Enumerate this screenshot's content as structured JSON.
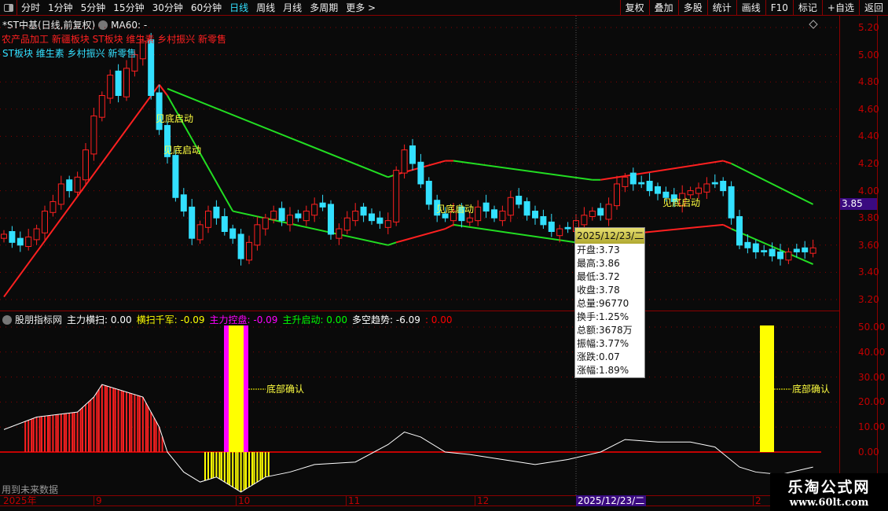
{
  "toolbar": {
    "periods": [
      "分时",
      "1分钟",
      "5分钟",
      "15分钟",
      "30分钟",
      "60分钟",
      "日线",
      "周线",
      "月线",
      "多周期",
      "更多 >"
    ],
    "active_period": "日线",
    "right_buttons": [
      "复权",
      "叠加",
      "多股",
      "统计",
      "画线",
      "F10",
      "标记",
      "+自选",
      "返回"
    ]
  },
  "header": {
    "title": "*ST中基(日线,前复权)",
    "ma_label": "MA60: -",
    "tags_red": "农产品加工 新疆板块 ST板块 维生素 乡村振兴 新零售",
    "tags_cyan": "ST板块 维生素 乡村振兴 新零售"
  },
  "price_axis": {
    "ticks": [
      "5.20",
      "5.00",
      "4.80",
      "4.60",
      "4.40",
      "4.20",
      "4.00",
      "3.80",
      "3.60",
      "3.40",
      "3.20"
    ],
    "current": "3.85"
  },
  "annotations": [
    "见底启动",
    "见底启动",
    "见底启动",
    "见底启动"
  ],
  "indicator": {
    "name": "股朋指标网",
    "items": [
      {
        "label": "主力横扫: 0.00",
        "color": "#ffffff"
      },
      {
        "label": "横扫千军: -0.09",
        "color": "#ffff00"
      },
      {
        "label": "主力控盘: -0.09",
        "color": "#ff00ff"
      },
      {
        "label": "主升启动: 0.00",
        "color": "#00ff00"
      },
      {
        "label": "多空趋势: -6.09",
        "color": "#ffffff"
      },
      {
        "label": ": 0.00",
        "color": "#ff0000"
      }
    ],
    "ticks": [
      "50.00",
      "40.00",
      "30.00",
      "20.00",
      "10.00",
      "0.00"
    ],
    "signal_label": "底部确认"
  },
  "tooltip": {
    "date": "2025/12/23/二",
    "rows": [
      "开盘:3.73",
      "最高:3.86",
      "最低:3.72",
      "收盘:3.78",
      "总量:96770",
      "换手:1.25%",
      "总额:3678万",
      "振幅:3.77%",
      "涨跌:0.07",
      "涨幅:1.89%"
    ]
  },
  "time_axis": {
    "labels": [
      "2025年",
      "9",
      "10",
      "11",
      "12",
      "2"
    ],
    "cursor_date": "2025/12/23/二"
  },
  "future_note": "用到未来数据",
  "watermark": {
    "name": "乐淘公式网",
    "url": "www.60lt.com"
  },
  "colors": {
    "up": "#ff2020",
    "down": "#33e0ff",
    "ma_up": "#ff2020",
    "ma_down": "#22dd22",
    "accent": "#8b0000"
  },
  "chart_data": {
    "type": "candlestick",
    "closes": [
      3.68,
      3.62,
      3.6,
      3.66,
      3.72,
      3.85,
      3.92,
      4.05,
      4.0,
      4.1,
      4.3,
      4.55,
      4.7,
      4.85,
      4.7,
      4.9,
      5.0,
      5.1,
      4.7,
      4.45,
      4.25,
      3.95,
      3.85,
      3.65,
      3.75,
      3.85,
      3.8,
      3.7,
      3.65,
      3.5,
      3.62,
      3.75,
      3.8,
      3.85,
      3.78,
      3.82,
      3.8,
      3.85,
      3.9,
      3.88,
      3.68,
      3.72,
      3.8,
      3.85,
      3.82,
      3.78,
      3.76,
      3.78,
      4.15,
      4.3,
      4.2,
      4.05,
      3.9,
      3.82,
      3.8,
      3.85,
      3.78,
      3.8,
      3.88,
      3.85,
      3.8,
      3.85,
      3.95,
      3.9,
      3.82,
      3.8,
      3.75,
      3.7,
      3.72,
      3.72,
      3.78,
      3.82,
      3.85,
      3.82,
      3.9,
      4.05,
      4.1,
      4.05,
      4.05,
      4.0,
      3.98,
      3.95,
      3.92,
      3.98,
      4.0,
      4.02,
      4.05,
      4.05,
      4.0,
      3.8,
      3.6,
      3.58,
      3.55,
      3.55,
      3.52,
      3.5,
      3.55,
      3.55,
      3.55,
      3.58
    ],
    "upper_band": [
      [
        20,
        4.75,
        "down"
      ],
      [
        47,
        4.1,
        "down"
      ],
      [
        48,
        4.12,
        "up"
      ],
      [
        54,
        4.22,
        "up"
      ],
      [
        55,
        4.22,
        "down"
      ],
      [
        72,
        4.08,
        "down"
      ],
      [
        73,
        4.08,
        "up"
      ],
      [
        88,
        4.22,
        "up"
      ],
      [
        89,
        4.2,
        "down"
      ],
      [
        99,
        3.9,
        "down"
      ]
    ],
    "lower_band": [
      [
        0,
        3.22,
        "up"
      ],
      [
        19,
        4.78,
        "up"
      ],
      [
        20,
        4.7,
        "down"
      ],
      [
        28,
        3.85,
        "down"
      ],
      [
        47,
        3.6,
        "down"
      ],
      [
        48,
        3.62,
        "up"
      ],
      [
        54,
        3.72,
        "up"
      ],
      [
        55,
        3.75,
        "down"
      ],
      [
        70,
        3.62,
        "down"
      ],
      [
        71,
        3.65,
        "up"
      ],
      [
        88,
        3.75,
        "up"
      ],
      [
        89,
        3.72,
        "down"
      ],
      [
        99,
        3.46,
        "down"
      ]
    ],
    "trend_line": [
      [
        0,
        9
      ],
      [
        4,
        14
      ],
      [
        9,
        16
      ],
      [
        11,
        22
      ],
      [
        12,
        27
      ],
      [
        17,
        22
      ],
      [
        19,
        10
      ],
      [
        20,
        0
      ],
      [
        22,
        -8
      ],
      [
        24,
        -12
      ],
      [
        26,
        -10
      ],
      [
        29,
        -16
      ],
      [
        32,
        -10
      ],
      [
        35,
        -8
      ],
      [
        38,
        -5
      ],
      [
        43,
        -4
      ],
      [
        47,
        3
      ],
      [
        49,
        8
      ],
      [
        51,
        6
      ],
      [
        54,
        0
      ],
      [
        57,
        -1
      ],
      [
        61,
        -3
      ],
      [
        65,
        -5
      ],
      [
        69,
        -3
      ],
      [
        73,
        0
      ],
      [
        76,
        5
      ],
      [
        80,
        4
      ],
      [
        84,
        4
      ],
      [
        87,
        2
      ],
      [
        90,
        -6
      ],
      [
        92,
        -8
      ],
      [
        95,
        -9
      ],
      [
        99,
        -6
      ]
    ],
    "red_bars": [
      3,
      4,
      5,
      6,
      7,
      8,
      9,
      10,
      11,
      12,
      13,
      14,
      15,
      16,
      17,
      18,
      19
    ],
    "yellow_neg_bars": [
      25,
      26,
      27,
      28,
      29,
      30,
      31,
      32
    ],
    "signal_bars": [
      28,
      92
    ],
    "ylim_indicator": [
      -17,
      55
    ],
    "ylim_price": [
      3.15,
      5.25
    ]
  }
}
